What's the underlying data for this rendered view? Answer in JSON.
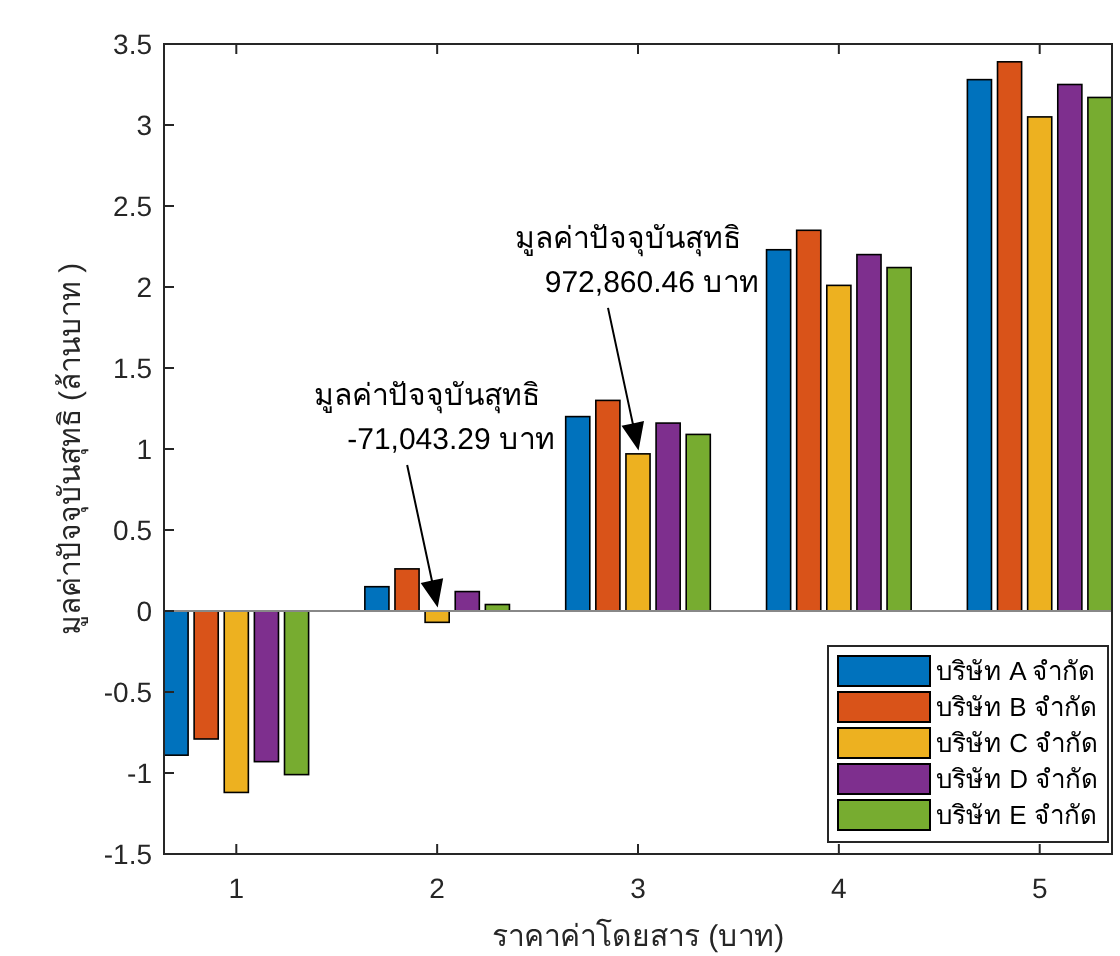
{
  "chart_data": {
    "type": "bar",
    "xlabel": "ราคาค่าโดยสาร    (บาท)",
    "ylabel": "มูลค่าปัจจุบันสุทธิ   (ล้านบาท )",
    "categories": [
      "1",
      "2",
      "3",
      "4",
      "5"
    ],
    "series": [
      {
        "name": "บริษัท A จำกัด",
        "color": "#0072bd",
        "values": [
          -0.89,
          0.15,
          1.2,
          2.23,
          3.28
        ]
      },
      {
        "name": "บริษัท B จำกัด",
        "color": "#d95319",
        "values": [
          -0.79,
          0.26,
          1.3,
          2.35,
          3.39
        ]
      },
      {
        "name": "บริษัท C จำกัด",
        "color": "#edb120",
        "values": [
          -1.12,
          -0.07,
          0.97,
          2.01,
          3.05
        ]
      },
      {
        "name": "บริษัท D จำกัด",
        "color": "#7e2f8e",
        "values": [
          -0.93,
          0.12,
          1.16,
          2.2,
          3.25
        ]
      },
      {
        "name": "บริษัท E จำกัด",
        "color": "#77ac30",
        "values": [
          -1.01,
          0.04,
          1.09,
          2.12,
          3.17
        ]
      }
    ],
    "ylim": [
      -1.5,
      3.5
    ],
    "yticks": [
      -1.5,
      -1,
      -0.5,
      0,
      0.5,
      1,
      1.5,
      2,
      2.5,
      3,
      3.5
    ],
    "legend": "bottom right",
    "annotations": [
      "มูลค่าปัจจุบันสุทธิ\n-71,043.29 บาท",
      "มูลค่าปัจจุบันสุทธิ\n972,860.46 บาท"
    ]
  }
}
